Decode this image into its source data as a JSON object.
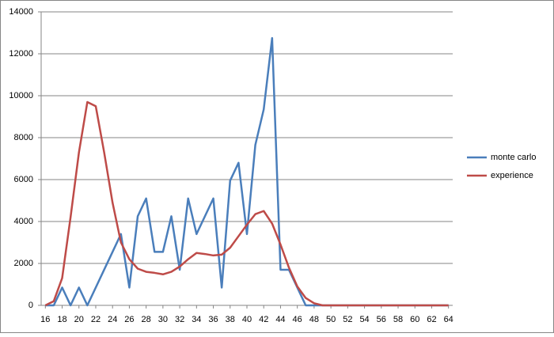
{
  "chart_data": {
    "type": "line",
    "x": [
      16,
      17,
      18,
      19,
      20,
      21,
      22,
      23,
      24,
      25,
      26,
      27,
      28,
      29,
      30,
      31,
      32,
      33,
      34,
      35,
      36,
      37,
      38,
      39,
      40,
      41,
      42,
      43,
      44,
      45,
      46,
      47,
      48,
      49,
      50,
      51,
      52,
      53,
      54,
      55,
      56,
      57,
      58,
      59,
      60,
      61,
      62,
      63,
      64
    ],
    "series": [
      {
        "name": "monte carlo",
        "color": "#4a7ebb",
        "values": [
          0,
          0,
          850,
          0,
          850,
          0,
          850,
          1700,
          2550,
          3400,
          850,
          4250,
          5100,
          2550,
          2550,
          4250,
          1700,
          5100,
          3400,
          4250,
          5100,
          850,
          5950,
          6800,
          3400,
          7650,
          9350,
          12750,
          1700,
          1700,
          850,
          0,
          0,
          0,
          0,
          0,
          0,
          0,
          0,
          0,
          0,
          0,
          0,
          0,
          0,
          0,
          0,
          0,
          0
        ]
      },
      {
        "name": "experience",
        "color": "#be4b48",
        "values": [
          0,
          200,
          1300,
          4200,
          7300,
          9700,
          9500,
          7300,
          4900,
          3000,
          2200,
          1750,
          1600,
          1550,
          1480,
          1600,
          1850,
          2200,
          2500,
          2450,
          2380,
          2420,
          2750,
          3300,
          3850,
          4350,
          4500,
          3900,
          2900,
          1800,
          900,
          350,
          100,
          0,
          0,
          0,
          0,
          0,
          0,
          0,
          0,
          0,
          0,
          0,
          0,
          0,
          0,
          0,
          0
        ]
      }
    ],
    "xlim": [
      15.5,
      64.5
    ],
    "xticks": [
      16,
      18,
      20,
      22,
      24,
      26,
      28,
      30,
      32,
      34,
      36,
      38,
      40,
      42,
      44,
      46,
      48,
      50,
      52,
      54,
      56,
      58,
      60,
      62,
      64
    ],
    "ylim": [
      0,
      14000
    ],
    "yticks": [
      0,
      2000,
      4000,
      6000,
      8000,
      10000,
      12000,
      14000
    ],
    "grid": true,
    "legend": "right"
  }
}
